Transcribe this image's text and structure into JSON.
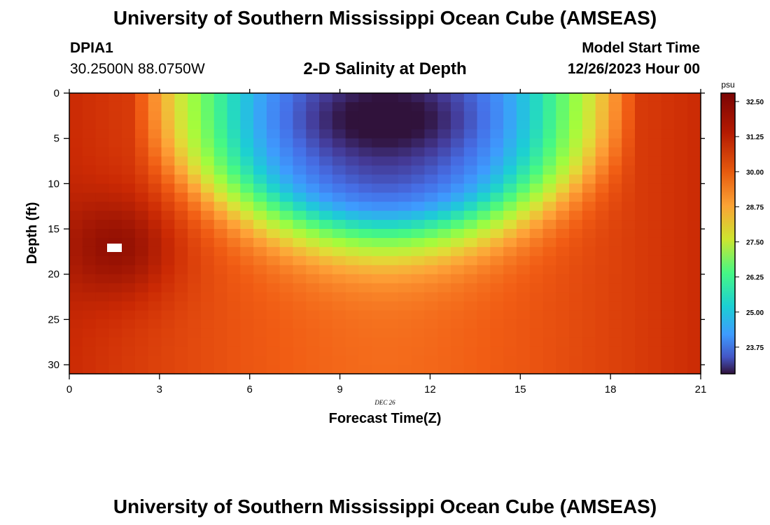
{
  "header": {
    "title": "University of Southern Mississippi Ocean Cube (AMSEAS)",
    "station_id": "DPIA1",
    "station_coords": "30.2500N  88.0750W",
    "plot_title": "2-D Salinity at Depth",
    "model_start_label": "Model Start Time",
    "model_start_value": "12/26/2023 Hour 00"
  },
  "footer": {
    "title_repeat": "University of Southern Mississippi Ocean Cube (AMSEAS)"
  },
  "chart_data": {
    "type": "heatmap",
    "title": "2-D Salinity at Depth",
    "xlabel": "Forecast Time(Z)",
    "ylabel": "Depth (ft)",
    "date_label": "DEC 26",
    "x_ticks": [
      "0",
      "3",
      "6",
      "9",
      "12",
      "15",
      "18",
      "21"
    ],
    "y_ticks": [
      "0",
      "5",
      "10",
      "15",
      "20",
      "25",
      "30"
    ],
    "xlim": [
      0,
      21
    ],
    "ylim": [
      0,
      31
    ],
    "colorbar": {
      "unit": "psu",
      "ticks": [
        "32.50",
        "31.25",
        "30.00",
        "28.75",
        "27.50",
        "26.25",
        "25.00",
        "23.75"
      ],
      "range": [
        22.8,
        32.8
      ]
    },
    "notes": "Surface fresh core (~23 psu) centered near hour 10 at 2-4 ft; saline water (~32.5 psu) at depth on both ends of the period."
  }
}
